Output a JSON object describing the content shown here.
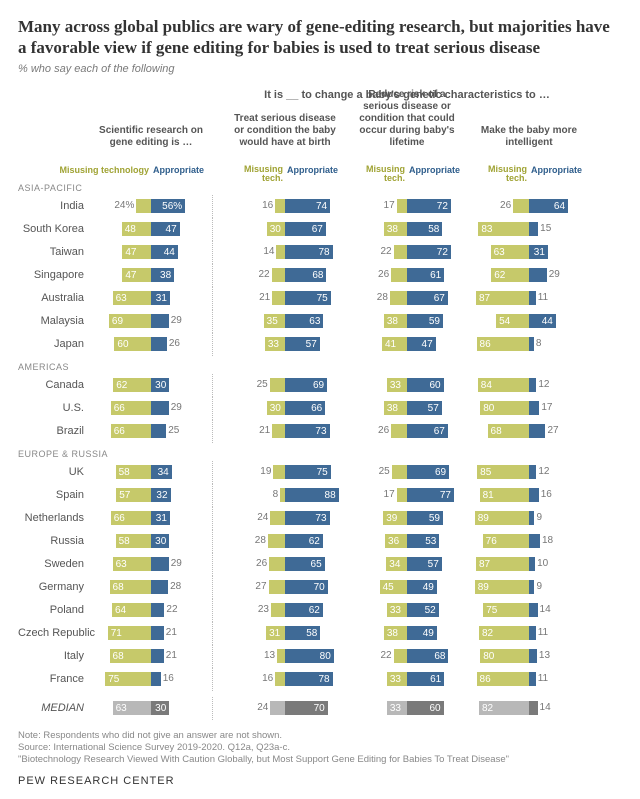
{
  "title": "Many across global publics are wary of gene-editing research, but majorities have a favorable view if gene editing for babies is used to treat serious disease",
  "subtitle": "% who say each of the following",
  "super_header": "It is __ to change a baby's genetic characteristics to …",
  "columns": [
    "Scientific research on gene editing is …",
    "Treat serious disease or condition the baby would have at birth",
    "Reduce risk of a serious disease or condition that could occur during baby's lifetime",
    "Make the baby more intelligent"
  ],
  "legend": {
    "misusing_full": "Misusing technology",
    "misusing_short": "Misusing tech.",
    "appropriate": "Appropriate"
  },
  "colors": {
    "neg": "#c6c96a",
    "pos": "#3f6a96",
    "median_neg": "#b8b8b8",
    "median_pos": "#7a7a7a",
    "legend_neg_text": "#a0a334",
    "legend_pos_text": "#2f5e8c",
    "bg": "#ffffff",
    "text_muted": "#777777"
  },
  "scale_max": 100,
  "regions": [
    {
      "name": "ASIA-PACIFIC",
      "rows": [
        {
          "label": "India",
          "vals": [
            [
              24,
              56
            ],
            [
              16,
              74
            ],
            [
              17,
              72
            ],
            [
              26,
              64
            ]
          ],
          "suffix0": "%"
        },
        {
          "label": "South Korea",
          "vals": [
            [
              48,
              47
            ],
            [
              30,
              67
            ],
            [
              38,
              58
            ],
            [
              83,
              15
            ]
          ]
        },
        {
          "label": "Taiwan",
          "vals": [
            [
              47,
              44
            ],
            [
              14,
              78
            ],
            [
              22,
              72
            ],
            [
              63,
              31
            ]
          ]
        },
        {
          "label": "Singapore",
          "vals": [
            [
              47,
              38
            ],
            [
              22,
              68
            ],
            [
              26,
              61
            ],
            [
              62,
              29
            ]
          ]
        },
        {
          "label": "Australia",
          "vals": [
            [
              63,
              31
            ],
            [
              21,
              75
            ],
            [
              28,
              67
            ],
            [
              87,
              11
            ]
          ]
        },
        {
          "label": "Malaysia",
          "vals": [
            [
              69,
              29
            ],
            [
              35,
              63
            ],
            [
              38,
              59
            ],
            [
              54,
              44
            ]
          ]
        },
        {
          "label": "Japan",
          "vals": [
            [
              60,
              26
            ],
            [
              33,
              57
            ],
            [
              41,
              47
            ],
            [
              86,
              8
            ]
          ]
        }
      ]
    },
    {
      "name": "AMERICAS",
      "rows": [
        {
          "label": "Canada",
          "vals": [
            [
              62,
              30
            ],
            [
              25,
              69
            ],
            [
              33,
              60
            ],
            [
              84,
              12
            ]
          ]
        },
        {
          "label": "U.S.",
          "vals": [
            [
              66,
              29
            ],
            [
              30,
              66
            ],
            [
              38,
              57
            ],
            [
              80,
              17
            ]
          ]
        },
        {
          "label": "Brazil",
          "vals": [
            [
              66,
              25
            ],
            [
              21,
              73
            ],
            [
              26,
              67
            ],
            [
              68,
              27
            ]
          ]
        }
      ]
    },
    {
      "name": "EUROPE & RUSSIA",
      "rows": [
        {
          "label": "UK",
          "vals": [
            [
              58,
              34
            ],
            [
              19,
              75
            ],
            [
              25,
              69
            ],
            [
              85,
              12
            ]
          ]
        },
        {
          "label": "Spain",
          "vals": [
            [
              57,
              32
            ],
            [
              8,
              88
            ],
            [
              17,
              77
            ],
            [
              81,
              16
            ]
          ]
        },
        {
          "label": "Netherlands",
          "vals": [
            [
              66,
              31
            ],
            [
              24,
              73
            ],
            [
              39,
              59
            ],
            [
              89,
              9
            ]
          ]
        },
        {
          "label": "Russia",
          "vals": [
            [
              58,
              30
            ],
            [
              28,
              62
            ],
            [
              36,
              53
            ],
            [
              76,
              18
            ]
          ]
        },
        {
          "label": "Sweden",
          "vals": [
            [
              63,
              29
            ],
            [
              26,
              65
            ],
            [
              34,
              57
            ],
            [
              87,
              10
            ]
          ]
        },
        {
          "label": "Germany",
          "vals": [
            [
              68,
              28
            ],
            [
              27,
              70
            ],
            [
              45,
              49
            ],
            [
              89,
              9
            ]
          ]
        },
        {
          "label": "Poland",
          "vals": [
            [
              64,
              22
            ],
            [
              23,
              62
            ],
            [
              33,
              52
            ],
            [
              75,
              14
            ]
          ]
        },
        {
          "label": "Czech Republic",
          "vals": [
            [
              71,
              21
            ],
            [
              31,
              58
            ],
            [
              38,
              49
            ],
            [
              82,
              11
            ]
          ]
        },
        {
          "label": "Italy",
          "vals": [
            [
              68,
              21
            ],
            [
              13,
              80
            ],
            [
              22,
              68
            ],
            [
              80,
              13
            ]
          ]
        },
        {
          "label": "France",
          "vals": [
            [
              75,
              16
            ],
            [
              16,
              78
            ],
            [
              33,
              61
            ],
            [
              86,
              11
            ]
          ]
        }
      ]
    }
  ],
  "median": {
    "label": "MEDIAN",
    "vals": [
      [
        63,
        30
      ],
      [
        24,
        70
      ],
      [
        33,
        60
      ],
      [
        82,
        14
      ]
    ]
  },
  "notes": [
    "Note: Respondents who did not give an answer are not shown.",
    "Source: International Science Survey 2019-2020. Q12a, Q23a-c.",
    "\"Biotechnology Research Viewed With Caution Globally, but Most Support Gene Editing for Babies To Treat Disease\""
  ],
  "logo": "PEW RESEARCH CENTER"
}
